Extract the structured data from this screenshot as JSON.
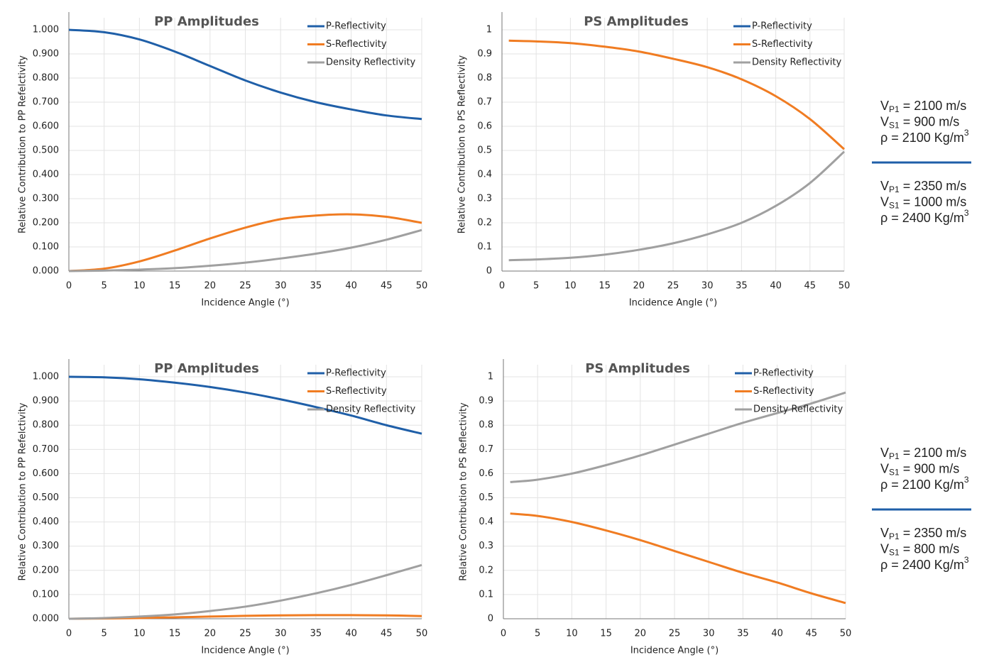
{
  "chart_data": [
    {
      "type": "line",
      "title": "PP Amplitudes",
      "x_label": "Incidence Angle (°)",
      "y_label": "Relative Contribution to PP Refelctivity",
      "x": [
        0,
        5,
        10,
        15,
        20,
        25,
        30,
        35,
        40,
        45,
        50
      ],
      "xlim": [
        0,
        50
      ],
      "xticks": [
        0,
        5,
        10,
        15,
        20,
        25,
        30,
        35,
        40,
        45,
        50
      ],
      "ylim": [
        0,
        1.05
      ],
      "yticks": [
        {
          "value": 0,
          "label": "0.000"
        },
        {
          "value": 0.1,
          "label": "0.100"
        },
        {
          "value": 0.2,
          "label": "0.200"
        },
        {
          "value": 0.3,
          "label": "0.300"
        },
        {
          "value": 0.4,
          "label": "0.400"
        },
        {
          "value": 0.5,
          "label": "0.500"
        },
        {
          "value": 0.6,
          "label": "0.600"
        },
        {
          "value": 0.7,
          "label": "0.700"
        },
        {
          "value": 0.8,
          "label": "0.800"
        },
        {
          "value": 0.9,
          "label": "0.900"
        },
        {
          "value": 1,
          "label": "1.000"
        }
      ],
      "grid": true,
      "legend": "upper right",
      "series": [
        {
          "name": "P-Reflectivity",
          "color": "#1f5fa8",
          "values": [
            1.0,
            0.99,
            0.96,
            0.91,
            0.85,
            0.79,
            0.74,
            0.7,
            0.67,
            0.645,
            0.63
          ]
        },
        {
          "name": "S-Reflectivity",
          "color": "#f07c22",
          "values": [
            0,
            0.01,
            0.04,
            0.085,
            0.135,
            0.18,
            0.215,
            0.23,
            0.235,
            0.225,
            0.2
          ]
        },
        {
          "name": "Density Reflectivity",
          "color": "#a0a0a0",
          "values": [
            0,
            0.002,
            0.006,
            0.012,
            0.022,
            0.035,
            0.052,
            0.072,
            0.097,
            0.13,
            0.17
          ]
        }
      ]
    },
    {
      "type": "line",
      "title": "PS Amplitudes",
      "x_label": "Incidence Angle (°)",
      "y_label": "Relative Contribution to PS Reflectivity",
      "x": [
        1,
        5,
        10,
        15,
        20,
        25,
        30,
        35,
        40,
        45,
        50
      ],
      "xlim": [
        0,
        50
      ],
      "xticks": [
        0,
        5,
        10,
        15,
        20,
        25,
        30,
        35,
        40,
        45,
        50
      ],
      "ylim": [
        0,
        1.05
      ],
      "yticks": [
        0,
        0.1,
        0.2,
        0.3,
        0.4,
        0.5,
        0.6,
        0.7,
        0.8,
        0.9,
        1
      ],
      "grid": true,
      "legend": "upper right",
      "series": [
        {
          "name": "P-Reflectivity",
          "color": "#1f5fa8",
          "values": [
            null,
            null,
            null,
            null,
            null,
            null,
            null,
            null,
            null,
            null,
            null
          ]
        },
        {
          "name": "S-Reflectivity",
          "color": "#f07c22",
          "values": [
            0.955,
            0.952,
            0.945,
            0.93,
            0.91,
            0.88,
            0.845,
            0.795,
            0.725,
            0.63,
            0.505
          ]
        },
        {
          "name": "Density Reflectivity",
          "color": "#a0a0a0",
          "values": [
            0.045,
            0.048,
            0.055,
            0.068,
            0.088,
            0.115,
            0.152,
            0.2,
            0.27,
            0.365,
            0.495
          ]
        }
      ]
    },
    {
      "type": "line",
      "title": "PP Amplitudes",
      "x_label": "Incidence Angle (°)",
      "y_label": "Relative Contribution to PP Refelctivity",
      "x": [
        0,
        5,
        10,
        15,
        20,
        25,
        30,
        35,
        40,
        45,
        50
      ],
      "xlim": [
        0,
        50
      ],
      "xticks": [
        0,
        5,
        10,
        15,
        20,
        25,
        30,
        35,
        40,
        45,
        50
      ],
      "ylim": [
        0,
        1.05
      ],
      "yticks": [
        {
          "value": 0,
          "label": "0.000"
        },
        {
          "value": 0.1,
          "label": "0.100"
        },
        {
          "value": 0.2,
          "label": "0.200"
        },
        {
          "value": 0.3,
          "label": "0.300"
        },
        {
          "value": 0.4,
          "label": "0.400"
        },
        {
          "value": 0.5,
          "label": "0.500"
        },
        {
          "value": 0.6,
          "label": "0.600"
        },
        {
          "value": 0.7,
          "label": "0.700"
        },
        {
          "value": 0.8,
          "label": "0.800"
        },
        {
          "value": 0.9,
          "label": "0.900"
        },
        {
          "value": 1,
          "label": "1.000"
        }
      ],
      "grid": true,
      "legend": "upper right",
      "series": [
        {
          "name": "P-Reflectivity",
          "color": "#1f5fa8",
          "values": [
            1.0,
            0.998,
            0.99,
            0.976,
            0.958,
            0.935,
            0.907,
            0.875,
            0.84,
            0.8,
            0.765
          ]
        },
        {
          "name": "S-Reflectivity",
          "color": "#f07c22",
          "values": [
            0,
            0.001,
            0.003,
            0.006,
            0.009,
            0.012,
            0.014,
            0.015,
            0.015,
            0.014,
            0.011
          ]
        },
        {
          "name": "Density Reflectivity",
          "color": "#a0a0a0",
          "values": [
            0,
            0.003,
            0.009,
            0.018,
            0.032,
            0.05,
            0.075,
            0.105,
            0.14,
            0.18,
            0.222
          ]
        }
      ]
    },
    {
      "type": "line",
      "title": "PS Amplitudes",
      "x_label": "Incidence Angle (°)",
      "y_label": "Relative Contribution to PS Reflectivity",
      "x": [
        1,
        5,
        10,
        15,
        20,
        25,
        30,
        35,
        40,
        45,
        50
      ],
      "xlim": [
        0,
        50
      ],
      "xticks": [
        0,
        5,
        10,
        15,
        20,
        25,
        30,
        35,
        40,
        45,
        50
      ],
      "ylim": [
        0,
        1.05
      ],
      "yticks": [
        0,
        0.1,
        0.2,
        0.3,
        0.4,
        0.5,
        0.6,
        0.7,
        0.8,
        0.9,
        1
      ],
      "grid": true,
      "legend": "upper right",
      "series": [
        {
          "name": "P-Reflectivity",
          "color": "#1f5fa8",
          "values": [
            null,
            null,
            null,
            null,
            null,
            null,
            null,
            null,
            null,
            null,
            null
          ]
        },
        {
          "name": "S-Reflectivity",
          "color": "#f07c22",
          "values": [
            0.435,
            0.425,
            0.4,
            0.365,
            0.325,
            0.28,
            0.235,
            0.19,
            0.15,
            0.105,
            0.065
          ]
        },
        {
          "name": "Density Reflectivity",
          "color": "#a0a0a0",
          "values": [
            0.565,
            0.575,
            0.6,
            0.635,
            0.675,
            0.72,
            0.765,
            0.81,
            0.85,
            0.89,
            0.935
          ]
        }
      ]
    }
  ],
  "panels": [
    {
      "upper": [
        {
          "main": "V",
          "sub": "P1",
          "rest": "= 2100 m/s"
        },
        {
          "main": "V",
          "sub": "S1",
          "rest": "= 900 m/s"
        },
        {
          "main": "ρ = 2100 Kg/m",
          "sup": "3"
        }
      ],
      "lower": [
        {
          "main": "V",
          "sub": "P1",
          "rest": "= 2350 m/s"
        },
        {
          "main": "V",
          "sub": "S1",
          "rest": "= 1000 m/s"
        },
        {
          "main": "ρ = 2400 Kg/m",
          "sup": "3"
        }
      ]
    },
    {
      "upper": [
        {
          "main": "V",
          "sub": "P1",
          "rest": "= 2100 m/s"
        },
        {
          "main": "V",
          "sub": "S1",
          "rest": "= 900 m/s"
        },
        {
          "main": "ρ = 2100 Kg/m",
          "sup": "3"
        }
      ],
      "lower": [
        {
          "main": "V",
          "sub": "P1",
          "rest": "= 2350 m/s"
        },
        {
          "main": "V",
          "sub": "S1",
          "rest": "= 800 m/s"
        },
        {
          "main": "ρ = 2400 Kg/m",
          "sup": "3"
        }
      ]
    }
  ]
}
